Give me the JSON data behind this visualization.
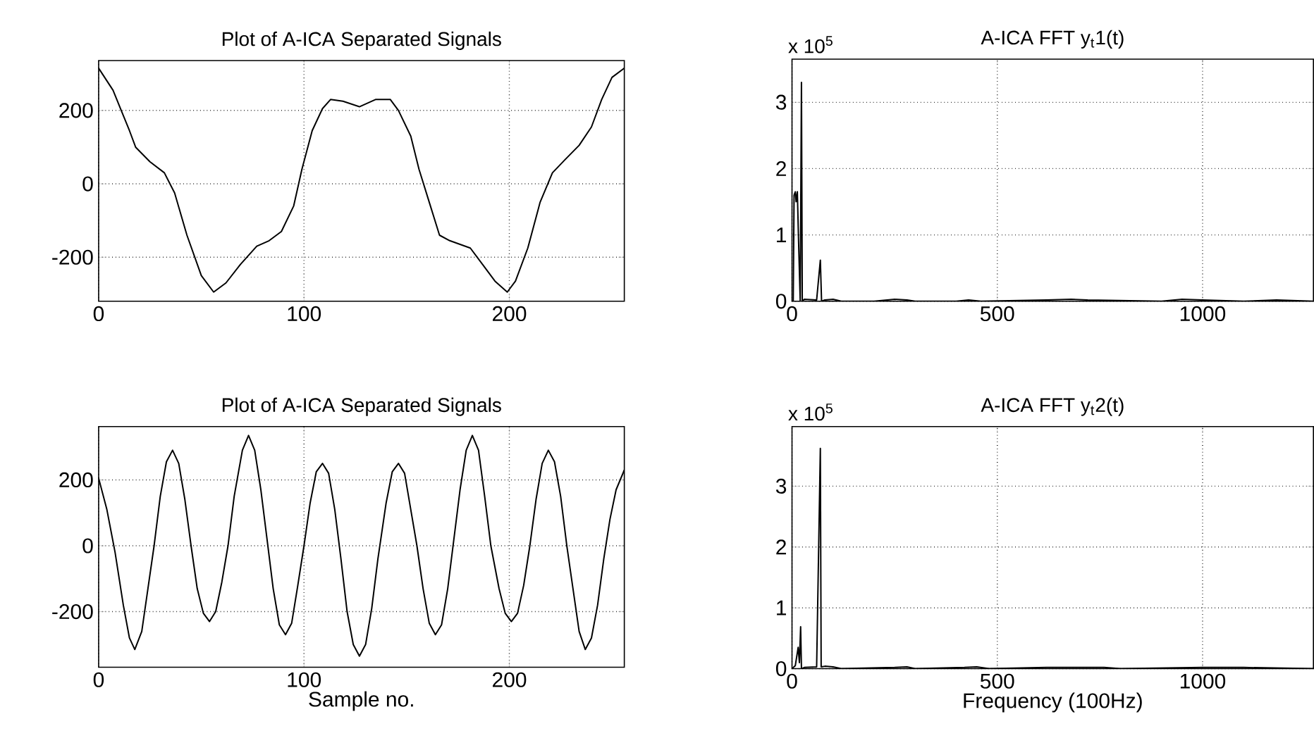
{
  "chart_data": [
    {
      "type": "line",
      "title": "Plot of A-ICA Separated Signals",
      "color": "#000000",
      "line_style": "solid",
      "grid": true,
      "x": [
        0,
        7,
        11,
        15,
        18,
        25,
        32,
        37,
        43,
        50,
        56,
        62,
        69,
        77,
        83,
        89,
        95,
        99,
        104,
        109,
        113,
        119,
        127,
        135,
        142,
        146,
        152,
        156,
        161,
        166,
        171,
        181,
        187,
        193,
        199,
        203,
        209,
        215,
        221,
        227,
        234,
        240,
        245,
        250,
        256
      ],
      "values": [
        315,
        255,
        200,
        145,
        100,
        60,
        30,
        -25,
        -140,
        -250,
        -295,
        -270,
        -220,
        -170,
        -155,
        -130,
        -60,
        40,
        145,
        205,
        230,
        225,
        210,
        230,
        230,
        200,
        130,
        40,
        -50,
        -140,
        -155,
        -175,
        -220,
        -265,
        -295,
        -265,
        -175,
        -50,
        30,
        65,
        105,
        155,
        230,
        290,
        315
      ],
      "xlim": [
        0,
        256
      ],
      "ylim": [
        -320,
        336
      ],
      "xticks": [
        0,
        100,
        200
      ],
      "yticks": [
        -200,
        0,
        200
      ]
    },
    {
      "type": "line",
      "title": "A-ICA FFT y$_{t}$1(t)",
      "color": "#000000",
      "line_style": "solid",
      "grid": true,
      "annotations": [
        "x 10$^{5}$"
      ],
      "x": [
        0,
        3,
        5,
        8,
        10,
        13,
        16,
        20,
        23,
        25,
        30,
        60,
        69,
        72,
        80,
        100,
        120,
        200,
        250,
        280,
        300,
        400,
        430,
        460,
        620,
        680,
        720,
        900,
        950,
        1000,
        1100,
        1180,
        1270
      ],
      "values": [
        0,
        0,
        1.6,
        1.65,
        1.5,
        1.65,
        0.9,
        0,
        3.3,
        0,
        0.03,
        0.02,
        0.62,
        0,
        0.02,
        0.03,
        0,
        0,
        0.03,
        0.02,
        0,
        0,
        0.02,
        0,
        0.02,
        0.03,
        0.02,
        0,
        0.03,
        0.02,
        0,
        0.02,
        0
      ],
      "xlim": [
        0,
        1270
      ],
      "ylim": [
        0,
        3.65
      ],
      "xticks": [
        0,
        500,
        1000
      ],
      "yticks": [
        0,
        1,
        2,
        3
      ]
    },
    {
      "type": "line",
      "title": "Plot of A-ICA Separated Signals",
      "xlabel": "Sample no.",
      "color": "#000000",
      "line_style": "solid",
      "grid": true,
      "x": [
        0,
        4,
        8,
        12,
        15,
        17.6,
        21,
        24,
        27,
        30,
        33,
        36,
        39,
        42,
        45,
        48,
        51,
        54,
        57,
        60,
        63,
        66,
        70,
        73,
        76,
        79,
        82,
        85,
        88,
        91,
        94,
        97,
        100,
        103,
        106,
        109,
        112,
        115,
        118,
        121,
        124,
        127,
        130,
        133,
        136,
        140,
        143,
        146,
        149,
        152,
        155,
        158,
        161,
        164,
        167,
        170,
        173,
        176,
        179,
        182,
        185,
        188,
        191,
        195,
        198,
        201,
        204,
        207,
        210,
        213,
        216,
        219,
        222,
        225,
        228,
        231,
        234,
        237,
        240,
        243,
        246,
        249,
        252,
        256
      ],
      "values": [
        205,
        110,
        -20,
        -180,
        -280,
        -315,
        -260,
        -130,
        0,
        150,
        255,
        290,
        250,
        140,
        0,
        -130,
        -205,
        -230,
        -200,
        -110,
        0,
        150,
        290,
        335,
        290,
        170,
        20,
        -130,
        -240,
        -270,
        -235,
        -120,
        0,
        130,
        225,
        250,
        220,
        110,
        -40,
        -200,
        -300,
        -335,
        -300,
        -190,
        -40,
        130,
        225,
        250,
        220,
        110,
        0,
        -130,
        -235,
        -270,
        -240,
        -130,
        20,
        170,
        290,
        335,
        290,
        150,
        0,
        -130,
        -205,
        -230,
        -205,
        -120,
        0,
        140,
        250,
        290,
        255,
        150,
        0,
        -130,
        -260,
        -315,
        -280,
        -180,
        -40,
        80,
        170,
        230
      ],
      "xlim": [
        0,
        256
      ],
      "ylim": [
        -369,
        362
      ],
      "xticks": [
        0,
        100,
        200
      ],
      "yticks": [
        -200,
        0,
        200
      ]
    },
    {
      "type": "line",
      "title": "A-ICA FFT y$_{t}$2(t)",
      "xlabel": "Frequency (100Hz)",
      "color": "#000000",
      "line_style": "solid",
      "grid": true,
      "annotations": [
        "x 10$^{5}$"
      ],
      "x": [
        0,
        8,
        15,
        18,
        21,
        23,
        30,
        60,
        69,
        71,
        80,
        100,
        120,
        250,
        280,
        300,
        420,
        450,
        480,
        620,
        760,
        800,
        1000,
        1100,
        1270
      ],
      "values": [
        0,
        0.05,
        0.35,
        0.1,
        0.69,
        0,
        0.02,
        0.03,
        3.62,
        0.03,
        0.04,
        0.03,
        0,
        0.02,
        0.03,
        0,
        0.02,
        0.03,
        0,
        0.02,
        0.02,
        0,
        0.02,
        0.02,
        0
      ],
      "xlim": [
        0,
        1270
      ],
      "ylim": [
        0,
        3.98
      ],
      "xticks": [
        0,
        500,
        1000
      ],
      "yticks": [
        0,
        1,
        2,
        3
      ]
    }
  ]
}
